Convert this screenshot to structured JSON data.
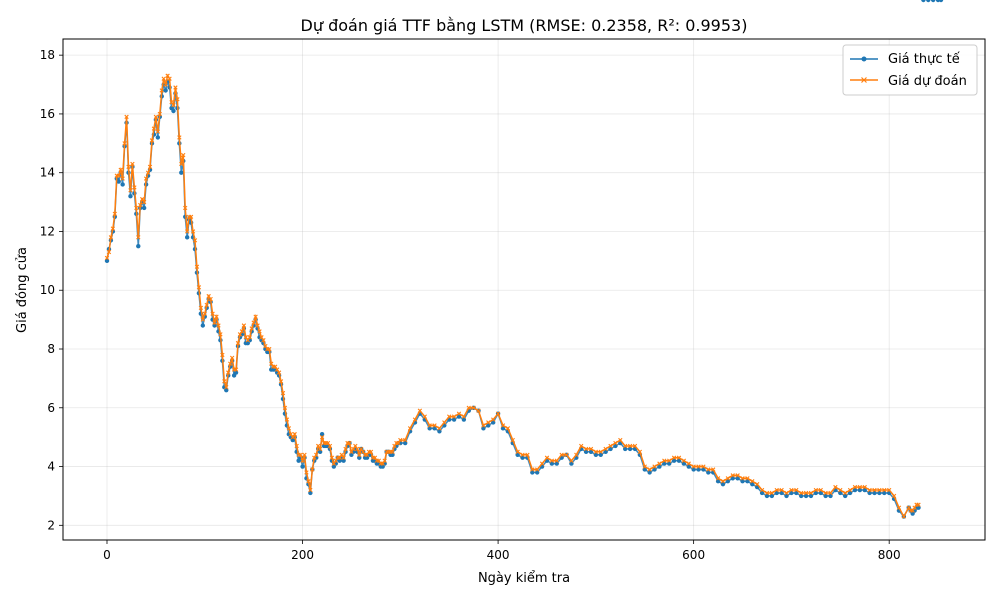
{
  "chart_data": {
    "type": "line",
    "title": "Dự đoán giá TTF bằng LSTM (RMSE: 0.2358, R²: 0.9953)",
    "xlabel": "Ngày kiểm tra",
    "ylabel": "Giá đóng cửa",
    "xlim": [
      -45,
      898
    ],
    "ylim": [
      1.5,
      18.55
    ],
    "x_ticks": [
      0,
      200,
      400,
      600,
      800
    ],
    "y_ticks": [
      2,
      4,
      6,
      8,
      10,
      12,
      14,
      16,
      18
    ],
    "grid": true,
    "legend_position": "top-right",
    "series": [
      {
        "name": "Giá thực tế",
        "color": "#1f77b4",
        "marker": "circle"
      },
      {
        "name": "Giá dự đoán",
        "color": "#ff7f0e",
        "marker": "x"
      }
    ],
    "x": [
      0,
      2,
      4,
      6,
      8,
      10,
      12,
      14,
      16,
      18,
      20,
      22,
      24,
      26,
      28,
      30,
      32,
      34,
      36,
      38,
      40,
      42,
      44,
      46,
      48,
      50,
      52,
      54,
      56,
      58,
      60,
      62,
      64,
      66,
      68,
      70,
      72,
      74,
      76,
      78,
      80,
      82,
      84,
      86,
      88,
      90,
      92,
      94,
      96,
      98,
      100,
      102,
      104,
      106,
      108,
      110,
      112,
      114,
      116,
      118,
      120,
      122,
      124,
      126,
      128,
      130,
      132,
      134,
      136,
      138,
      140,
      142,
      144,
      146,
      148,
      150,
      152,
      154,
      156,
      158,
      160,
      162,
      164,
      166,
      168,
      170,
      172,
      174,
      176,
      178,
      180,
      182,
      184,
      186,
      188,
      190,
      192,
      194,
      196,
      198,
      200,
      202,
      204,
      206,
      208,
      210,
      212,
      214,
      216,
      218,
      220,
      222,
      224,
      226,
      228,
      230,
      232,
      234,
      236,
      238,
      240,
      242,
      244,
      246,
      248,
      250,
      252,
      254,
      256,
      258,
      260,
      262,
      264,
      266,
      268,
      270,
      272,
      274,
      276,
      278,
      280,
      282,
      284,
      286,
      288,
      290,
      292,
      294,
      296,
      298,
      300,
      305,
      310,
      315,
      320,
      325,
      330,
      335,
      340,
      345,
      350,
      355,
      360,
      365,
      370,
      375,
      380,
      385,
      390,
      395,
      400,
      405,
      410,
      415,
      420,
      425,
      430,
      435,
      440,
      445,
      450,
      455,
      460,
      465,
      470,
      475,
      480,
      485,
      490,
      495,
      500,
      505,
      510,
      515,
      520,
      525,
      530,
      535,
      540,
      545,
      550,
      555,
      560,
      565,
      570,
      575,
      580,
      585,
      590,
      595,
      600,
      605,
      610,
      615,
      620,
      625,
      630,
      635,
      640,
      645,
      650,
      655,
      660,
      665,
      670,
      675,
      680,
      685,
      690,
      695,
      700,
      705,
      710,
      715,
      720,
      725,
      730,
      735,
      740,
      745,
      750,
      755,
      760,
      765,
      770,
      775,
      780,
      785,
      790,
      795,
      800,
      805,
      810,
      815,
      820,
      822,
      824,
      826,
      828,
      830,
      835,
      840,
      845,
      850,
      853
    ],
    "actual": [
      11.0,
      11.4,
      11.7,
      12.0,
      12.5,
      13.8,
      13.7,
      14.0,
      13.6,
      14.9,
      15.7,
      14.0,
      13.2,
      14.2,
      13.3,
      12.6,
      11.5,
      12.8,
      13.0,
      12.8,
      13.6,
      13.9,
      14.1,
      15.0,
      15.3,
      15.8,
      15.2,
      15.9,
      16.6,
      17.0,
      16.8,
      17.1,
      16.9,
      16.2,
      16.1,
      16.7,
      16.2,
      15.0,
      14.0,
      14.4,
      12.5,
      11.8,
      12.4,
      12.3,
      11.8,
      11.4,
      10.6,
      9.9,
      9.2,
      8.8,
      9.1,
      9.4,
      9.7,
      9.6,
      9.0,
      8.8,
      9.0,
      8.6,
      8.3,
      7.6,
      6.7,
      6.6,
      7.1,
      7.4,
      7.6,
      7.1,
      7.2,
      8.1,
      8.4,
      8.5,
      8.7,
      8.2,
      8.2,
      8.3,
      8.6,
      8.8,
      9.0,
      8.7,
      8.4,
      8.3,
      8.2,
      8.0,
      7.9,
      7.9,
      7.3,
      7.3,
      7.3,
      7.2,
      7.1,
      6.8,
      6.3,
      5.8,
      5.4,
      5.1,
      5.0,
      4.9,
      5.0,
      4.5,
      4.2,
      4.3,
      4.0,
      4.3,
      3.6,
      3.4,
      3.1,
      3.9,
      4.2,
      4.3,
      4.6,
      4.5,
      5.1,
      4.7,
      4.7,
      4.7,
      4.6,
      4.2,
      4.0,
      4.1,
      4.3,
      4.2,
      4.3,
      4.2,
      4.5,
      4.7,
      4.8,
      4.4,
      4.5,
      4.6,
      4.5,
      4.3,
      4.6,
      4.5,
      4.3,
      4.3,
      4.4,
      4.4,
      4.2,
      4.2,
      4.1,
      4.1,
      4.0,
      4.0,
      4.1,
      4.5,
      4.5,
      4.4,
      4.4,
      4.6,
      4.7,
      4.8,
      4.8,
      4.8,
      5.2,
      5.5,
      5.8,
      5.6,
      5.3,
      5.3,
      5.2,
      5.4,
      5.6,
      5.6,
      5.7,
      5.6,
      5.9,
      6.0,
      5.9,
      5.3,
      5.4,
      5.5,
      5.8,
      5.3,
      5.2,
      4.8,
      4.4,
      4.3,
      4.3,
      3.8,
      3.8,
      4.0,
      4.2,
      4.1,
      4.1,
      4.3,
      4.4,
      4.1,
      4.3,
      4.6,
      4.5,
      4.5,
      4.4,
      4.4,
      4.5,
      4.6,
      4.7,
      4.8,
      4.6,
      4.6,
      4.6,
      4.4,
      3.9,
      3.8,
      3.9,
      4.0,
      4.1,
      4.1,
      4.2,
      4.2,
      4.1,
      4.0,
      3.9,
      3.9,
      3.9,
      3.8,
      3.8,
      3.5,
      3.4,
      3.5,
      3.6,
      3.6,
      3.5,
      3.5,
      3.4,
      3.3,
      3.1,
      3.0,
      3.0,
      3.1,
      3.1,
      3.0,
      3.1,
      3.1,
      3.0,
      3.0,
      3.0,
      3.1,
      3.1,
      3.0,
      3.0,
      3.2,
      3.1,
      3.0,
      3.1,
      3.2,
      3.2,
      3.2,
      3.1,
      3.1,
      3.1,
      3.1,
      3.1,
      2.9,
      2.5,
      2.3,
      2.6,
      2.5,
      2.4,
      2.5,
      2.6,
      2.6
    ],
    "predicted": [
      11.1,
      11.3,
      11.8,
      12.1,
      12.6,
      13.9,
      13.9,
      14.1,
      13.8,
      15.0,
      15.9,
      14.2,
      13.4,
      14.3,
      13.5,
      12.8,
      11.8,
      12.9,
      13.1,
      13.0,
      13.8,
      14.0,
      14.2,
      15.1,
      15.5,
      15.9,
      15.4,
      16.0,
      16.8,
      17.2,
      17.0,
      17.3,
      17.2,
      16.4,
      16.3,
      16.9,
      16.5,
      15.2,
      14.3,
      14.6,
      12.8,
      12.0,
      12.5,
      12.5,
      12.0,
      11.7,
      10.8,
      10.1,
      9.4,
      9.0,
      9.2,
      9.5,
      9.8,
      9.7,
      9.2,
      8.9,
      9.1,
      8.8,
      8.5,
      7.8,
      6.9,
      6.7,
      7.2,
      7.5,
      7.7,
      7.3,
      7.3,
      8.2,
      8.5,
      8.6,
      8.8,
      8.4,
      8.3,
      8.4,
      8.7,
      8.9,
      9.1,
      8.8,
      8.6,
      8.4,
      8.3,
      8.1,
      8.0,
      8.0,
      7.5,
      7.4,
      7.4,
      7.3,
      7.2,
      6.9,
      6.5,
      6.0,
      5.6,
      5.3,
      5.1,
      5.0,
      5.1,
      4.7,
      4.4,
      4.4,
      4.2,
      4.4,
      3.8,
      3.5,
      3.2,
      3.9,
      4.3,
      4.4,
      4.7,
      4.6,
      5.0,
      4.8,
      4.8,
      4.8,
      4.7,
      4.3,
      4.1,
      4.2,
      4.3,
      4.3,
      4.4,
      4.3,
      4.6,
      4.8,
      4.8,
      4.5,
      4.6,
      4.7,
      4.6,
      4.4,
      4.6,
      4.5,
      4.4,
      4.4,
      4.5,
      4.5,
      4.3,
      4.3,
      4.2,
      4.2,
      4.1,
      4.1,
      4.2,
      4.5,
      4.5,
      4.5,
      4.5,
      4.7,
      4.8,
      4.8,
      4.9,
      4.9,
      5.3,
      5.6,
      5.9,
      5.7,
      5.4,
      5.4,
      5.3,
      5.5,
      5.7,
      5.7,
      5.8,
      5.7,
      6.0,
      6.0,
      5.9,
      5.4,
      5.5,
      5.6,
      5.8,
      5.4,
      5.3,
      4.9,
      4.5,
      4.4,
      4.4,
      3.9,
      3.9,
      4.1,
      4.3,
      4.2,
      4.2,
      4.4,
      4.4,
      4.2,
      4.4,
      4.7,
      4.6,
      4.6,
      4.5,
      4.5,
      4.6,
      4.7,
      4.8,
      4.9,
      4.7,
      4.7,
      4.7,
      4.5,
      4.0,
      3.9,
      4.0,
      4.1,
      4.2,
      4.2,
      4.3,
      4.3,
      4.2,
      4.1,
      4.0,
      4.0,
      4.0,
      3.9,
      3.9,
      3.6,
      3.5,
      3.6,
      3.7,
      3.7,
      3.6,
      3.6,
      3.5,
      3.4,
      3.2,
      3.1,
      3.1,
      3.2,
      3.2,
      3.1,
      3.2,
      3.2,
      3.1,
      3.1,
      3.1,
      3.2,
      3.2,
      3.1,
      3.1,
      3.3,
      3.2,
      3.1,
      3.2,
      3.3,
      3.3,
      3.3,
      3.2,
      3.2,
      3.2,
      3.2,
      3.2,
      3.0,
      2.6,
      2.3,
      2.6,
      2.5,
      2.5,
      2.6,
      2.7,
      2.7
    ]
  }
}
